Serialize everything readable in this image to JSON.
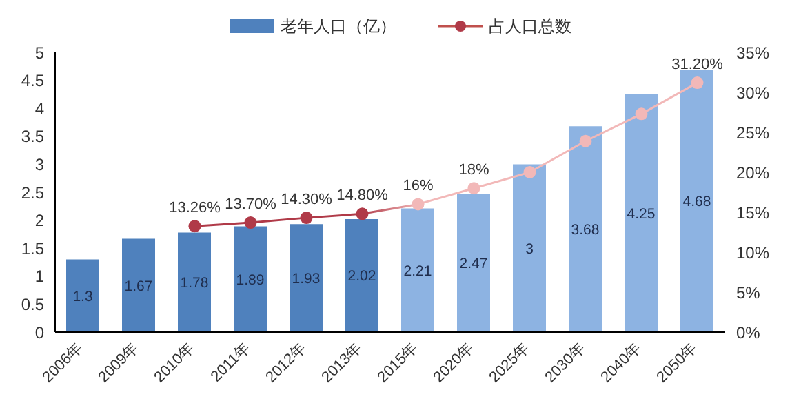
{
  "chart_data": {
    "type": "bar",
    "categories": [
      "2006年",
      "2009年",
      "2010年",
      "2011年",
      "2012年",
      "2013年",
      "2015年",
      "2020年",
      "2025年",
      "2030年",
      "2040年",
      "2050年"
    ],
    "series": [
      {
        "name": "老年人口（亿）",
        "color": "#4f81bd",
        "colors": [
          "#4f81bd",
          "#4f81bd",
          "#4f81bd",
          "#4f81bd",
          "#4f81bd",
          "#4f81bd",
          "#8db3e2",
          "#8db3e2",
          "#8db3e2",
          "#8db3e2",
          "#8db3e2",
          "#8db3e2"
        ],
        "values": [
          1.3,
          1.67,
          1.78,
          1.89,
          1.93,
          2.02,
          2.21,
          2.47,
          3,
          3.68,
          4.25,
          4.68
        ],
        "data_labels": true
      },
      {
        "name": "占人口总数",
        "type": "line",
        "axis": "y2",
        "color": "#c0504d",
        "colors": [
          null,
          null,
          "#b03a48",
          "#b03a48",
          "#b03a48",
          "#b03a48",
          "#f2b8b8",
          "#f2b8b8",
          "#f2b8b8",
          "#f2b8b8",
          "#f2b8b8",
          "#f2b8b8"
        ],
        "marker": "circle",
        "values": [
          null,
          null,
          13.26,
          13.7,
          14.3,
          14.8,
          16,
          18,
          20,
          23.9,
          27.3,
          31.2
        ],
        "value_labels": [
          null,
          null,
          "13.26%",
          "13.70%",
          "14.30%",
          "14.80%",
          "16%",
          "18%",
          null,
          null,
          null,
          "31.20%"
        ]
      }
    ],
    "ylim": [
      0,
      5
    ],
    "yticks": [
      0,
      0.5,
      1,
      1.5,
      2,
      2.5,
      3,
      3.5,
      4,
      4.5,
      5
    ],
    "y2lim": [
      0,
      35
    ],
    "y2ticks": [
      {
        "value": 0,
        "label": "0%"
      },
      {
        "value": 5,
        "label": "5%"
      },
      {
        "value": 10,
        "label": "10%"
      },
      {
        "value": 15,
        "label": "15%"
      },
      {
        "value": 20,
        "label": "20%"
      },
      {
        "value": 25,
        "label": "25%"
      },
      {
        "value": 30,
        "label": "30%"
      },
      {
        "value": 35,
        "label": "35%"
      }
    ],
    "grid": false,
    "legend": "top"
  }
}
